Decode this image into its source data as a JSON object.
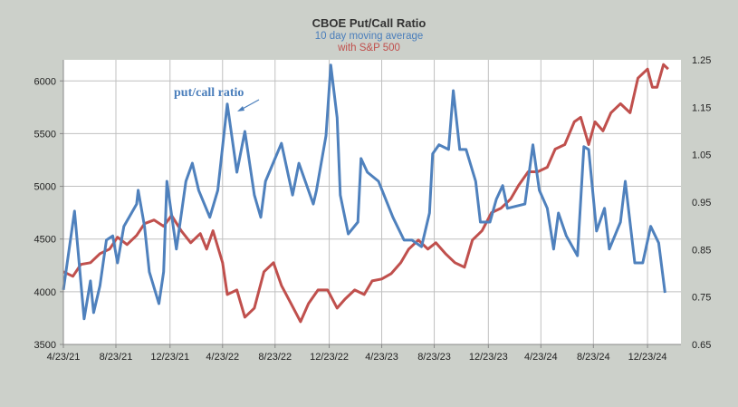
{
  "chart_data": {
    "type": "line",
    "title": "CBOE Put/Call Ratio",
    "subtitle": "10 day moving average",
    "subtitle2": "with S&P 500",
    "annotation": "put/call ratio",
    "xlabel": "",
    "x_unit": "decimal year",
    "xlim": [
      2021.31,
      2025.19
    ],
    "x_ticks": [
      {
        "label": "4/23/21",
        "value": 2021.31
      },
      {
        "label": "8/23/21",
        "value": 2021.64
      },
      {
        "label": "12/23/21",
        "value": 2021.98
      },
      {
        "label": "4/23/22",
        "value": 2022.31
      },
      {
        "label": "8/23/22",
        "value": 2022.64
      },
      {
        "label": "12/23/22",
        "value": 2022.98
      },
      {
        "label": "4/23/23",
        "value": 2023.31
      },
      {
        "label": "8/23/23",
        "value": 2023.64
      },
      {
        "label": "12/23/23",
        "value": 2023.98
      },
      {
        "label": "4/23/24",
        "value": 2024.31
      },
      {
        "label": "8/23/24",
        "value": 2024.64
      },
      {
        "label": "12/23/24",
        "value": 2024.98
      }
    ],
    "y_left": {
      "ylim": [
        3500,
        6200
      ],
      "ticks": [
        "3500",
        "4000",
        "4500",
        "5000",
        "5500",
        "6000"
      ]
    },
    "y_right": {
      "ylim": [
        0.65,
        1.25
      ],
      "ticks": [
        "0.65",
        "0.75",
        "0.85",
        "0.95",
        "1.05",
        "1.15",
        "1.25"
      ]
    },
    "grid": true,
    "series": [
      {
        "name": "put/call ratio",
        "axis": "right",
        "color": "#4f81bd",
        "x": [
          2021.31,
          2021.38,
          2021.44,
          2021.48,
          2021.5,
          2021.54,
          2021.58,
          2021.62,
          2021.65,
          2021.69,
          2021.77,
          2021.78,
          2021.82,
          2021.85,
          2021.91,
          2021.94,
          2021.96,
          2022.02,
          2022.08,
          2022.12,
          2022.16,
          2022.23,
          2022.28,
          2022.34,
          2022.4,
          2022.45,
          2022.51,
          2022.55,
          2022.58,
          2022.68,
          2022.75,
          2022.79,
          2022.88,
          2022.9,
          2022.96,
          2022.99,
          2023.03,
          2023.05,
          2023.1,
          2023.16,
          2023.18,
          2023.22,
          2023.29,
          2023.38,
          2023.45,
          2023.5,
          2023.56,
          2023.61,
          2023.63,
          2023.67,
          2023.73,
          2023.76,
          2023.8,
          2023.84,
          2023.9,
          2023.93,
          2023.99,
          2024.03,
          2024.07,
          2024.1,
          2024.21,
          2024.26,
          2024.3,
          2024.35,
          2024.39,
          2024.42,
          2024.47,
          2024.54,
          2024.58,
          2024.61,
          2024.66,
          2024.71,
          2024.74,
          2024.81,
          2024.84,
          2024.9,
          2024.95,
          2025.0,
          2025.05,
          2025.09
        ],
        "y": [
          0.765,
          0.931,
          0.704,
          0.784,
          0.717,
          0.774,
          0.87,
          0.879,
          0.822,
          0.899,
          0.946,
          0.975,
          0.899,
          0.803,
          0.736,
          0.803,
          0.994,
          0.851,
          0.994,
          1.032,
          0.975,
          0.918,
          0.975,
          1.157,
          1.013,
          1.099,
          0.965,
          0.918,
          0.994,
          1.074,
          0.965,
          1.032,
          0.946,
          0.975,
          1.09,
          1.239,
          1.128,
          0.965,
          0.883,
          0.908,
          1.042,
          1.013,
          0.994,
          0.918,
          0.87,
          0.87,
          0.856,
          0.927,
          1.052,
          1.071,
          1.061,
          1.185,
          1.061,
          1.061,
          0.994,
          0.908,
          0.908,
          0.956,
          0.985,
          0.937,
          0.946,
          1.071,
          0.975,
          0.937,
          0.851,
          0.927,
          0.879,
          0.837,
          1.067,
          1.061,
          0.889,
          0.937,
          0.851,
          0.908,
          0.994,
          0.822,
          0.822,
          0.899,
          0.864,
          0.759
        ]
      },
      {
        "name": "S&P 500",
        "axis": "left",
        "color": "#c0504d",
        "x": [
          2021.31,
          2021.37,
          2021.42,
          2021.48,
          2021.54,
          2021.6,
          2021.65,
          2021.71,
          2021.77,
          2021.82,
          2021.88,
          2021.94,
          2021.99,
          2022.05,
          2022.11,
          2022.17,
          2022.21,
          2022.25,
          2022.31,
          2022.34,
          2022.4,
          2022.45,
          2022.51,
          2022.57,
          2022.63,
          2022.68,
          2022.74,
          2022.8,
          2022.85,
          2022.91,
          2022.97,
          2023.03,
          2023.08,
          2023.14,
          2023.2,
          2023.25,
          2023.31,
          2023.37,
          2023.43,
          2023.48,
          2023.51,
          2023.54,
          2023.6,
          2023.65,
          2023.71,
          2023.77,
          2023.83,
          2023.88,
          2023.94,
          2024.0,
          2024.06,
          2024.12,
          2024.17,
          2024.23,
          2024.29,
          2024.35,
          2024.4,
          2024.46,
          2024.52,
          2024.56,
          2024.61,
          2024.65,
          2024.7,
          2024.75,
          2024.81,
          2024.87,
          2024.92,
          2024.98,
          2025.01,
          2025.04,
          2025.08,
          2025.11
        ],
        "y": [
          4190,
          4147,
          4259,
          4276,
          4362,
          4405,
          4517,
          4448,
          4534,
          4646,
          4681,
          4621,
          4724,
          4578,
          4465,
          4552,
          4405,
          4578,
          4276,
          3974,
          4017,
          3759,
          3845,
          4190,
          4276,
          4060,
          3888,
          3716,
          3888,
          4017,
          4017,
          3845,
          3931,
          4017,
          3974,
          4103,
          4121,
          4172,
          4276,
          4405,
          4448,
          4491,
          4405,
          4465,
          4362,
          4276,
          4233,
          4491,
          4578,
          4750,
          4793,
          4879,
          5009,
          5138,
          5138,
          5181,
          5353,
          5396,
          5612,
          5655,
          5396,
          5612,
          5526,
          5698,
          5784,
          5698,
          6026,
          6112,
          5940,
          5940,
          6155,
          6112
        ]
      }
    ]
  }
}
